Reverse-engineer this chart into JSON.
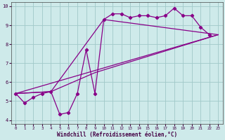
{
  "xlabel": "Windchill (Refroidissement éolien,°C)",
  "background_color": "#ceeaea",
  "grid_color": "#a0c8c8",
  "line_color": "#880088",
  "xlim": [
    -0.5,
    23.5
  ],
  "ylim": [
    3.8,
    10.2
  ],
  "xticks": [
    0,
    1,
    2,
    3,
    4,
    5,
    6,
    7,
    8,
    9,
    10,
    11,
    12,
    13,
    14,
    15,
    16,
    17,
    18,
    19,
    20,
    21,
    22,
    23
  ],
  "yticks": [
    4,
    5,
    6,
    7,
    8,
    9,
    10
  ],
  "series_main_x": [
    0,
    1,
    2,
    3,
    4,
    5,
    6,
    7,
    8,
    9,
    10,
    11,
    12,
    13,
    14,
    15,
    16,
    17,
    18,
    19,
    20,
    21,
    22
  ],
  "series_main_y": [
    5.4,
    4.9,
    5.2,
    5.4,
    5.5,
    4.3,
    4.4,
    5.4,
    7.7,
    5.4,
    9.3,
    9.6,
    9.6,
    9.4,
    9.5,
    9.5,
    9.4,
    9.5,
    9.9,
    9.5,
    9.5,
    8.9,
    8.5
  ],
  "line1_x": [
    0,
    23
  ],
  "line1_y": [
    5.4,
    8.5
  ],
  "line2_x": [
    0,
    23
  ],
  "line2_y": [
    5.4,
    8.5
  ],
  "line3_x": [
    0,
    4,
    10,
    23
  ],
  "line3_y": [
    5.4,
    5.5,
    9.3,
    8.5
  ],
  "line4_x": [
    0,
    4,
    9,
    23
  ],
  "line4_y": [
    5.4,
    5.5,
    6.5,
    8.5
  ]
}
